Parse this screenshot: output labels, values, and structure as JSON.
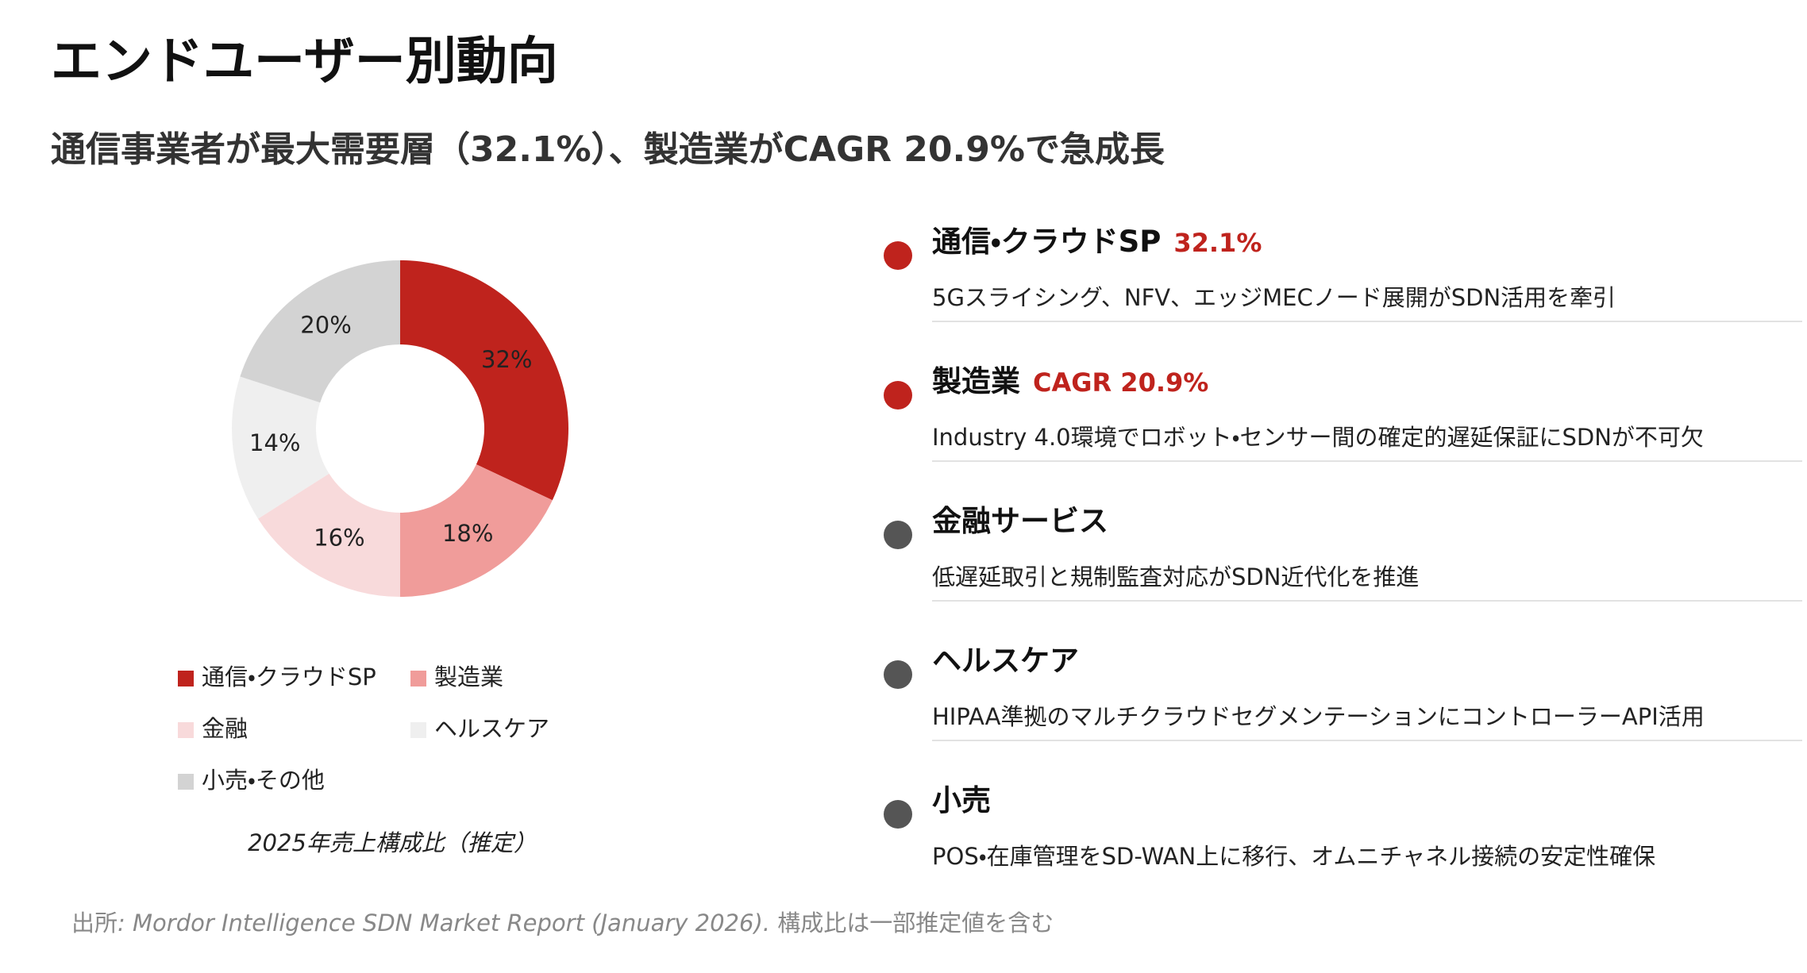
{
  "header": {
    "title": "エンドユーザー別動向",
    "subtitle": "通信事業者が最大需要層（32.1%）、製造業がCAGR 20.9%で急成長"
  },
  "chart_data": {
    "type": "donut",
    "categories": [
      "通信・クラウドSP",
      "製造業",
      "金融",
      "ヘルスケア",
      "小売・その他"
    ],
    "values": [
      32,
      18,
      16,
      14,
      20
    ],
    "value_labels": [
      "32%",
      "18%",
      "16%",
      "14%",
      "20%"
    ],
    "colors": [
      "#bf231d",
      "#f09c9a",
      "#f8dadb",
      "#efefef",
      "#d3d3d3"
    ],
    "caption": "2025年売上構成比（推定）"
  },
  "items": [
    {
      "title": "通信・クラウドSP",
      "highlight": "32.1%",
      "description": "5Gスライシング、NFV、エッジMECノード展開がSDN活用を牽引",
      "bullet_color": "#bf231d"
    },
    {
      "title": "製造業",
      "highlight": "CAGR 20.9%",
      "description": "Industry 4.0環境でロボット・センサー間の確定的遅延保証にSDNが不可欠",
      "bullet_color": "#bf231d"
    },
    {
      "title": "金融サービス",
      "description": "低遅延取引と規制監査対応がSDN近代化を推進",
      "bullet_color": "#555555"
    },
    {
      "title": "ヘルスケア",
      "description": "HIPAA準拠のマルチクラウドセグメンテーションにコントローラーAPI活用",
      "bullet_color": "#555555"
    },
    {
      "title": "小売",
      "description": "POS・在庫管理をSD-WAN上に移行、オムニチャネル接続の安定性確保",
      "bullet_color": "#555555"
    }
  ],
  "footer": {
    "prefix": "出所",
    "source": ": Mordor Intelligence SDN Market Report (January 2026).",
    "note": " 構成比は一部推定値を含む"
  }
}
